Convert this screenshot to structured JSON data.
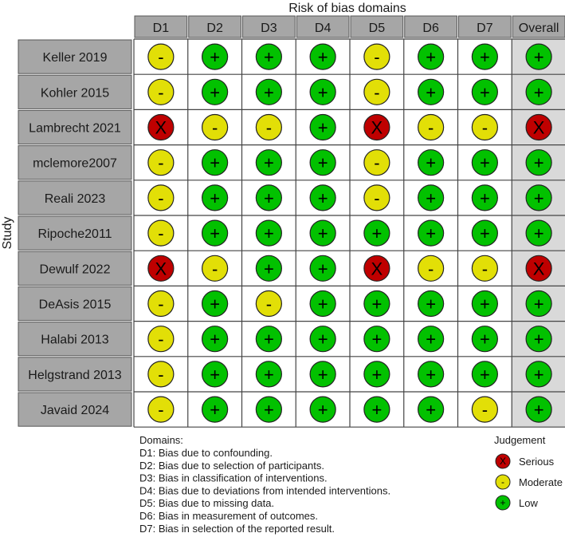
{
  "chart_data": {
    "type": "table",
    "title": "Risk of bias domains",
    "ylabel": "Study",
    "domains": [
      "D1",
      "D2",
      "D3",
      "D4",
      "D5",
      "D6",
      "D7",
      "Overall"
    ],
    "studies": [
      "Keller 2019",
      "Kohler 2015",
      "Lambrecht 2021",
      "mclemore2007",
      "Reali 2023",
      "Ripoche2011",
      "Dewulf 2022",
      "DeAsis 2015",
      "Halabi 2013",
      "Helgstrand 2013",
      "Javaid 2024"
    ],
    "judgements": [
      [
        "Moderate",
        "Low",
        "Low",
        "Low",
        "Moderate",
        "Low",
        "Low",
        "Low"
      ],
      [
        "Moderate",
        "Low",
        "Low",
        "Low",
        "Moderate",
        "Low",
        "Low",
        "Low"
      ],
      [
        "Serious",
        "Moderate",
        "Moderate",
        "Low",
        "Serious",
        "Moderate",
        "Moderate",
        "Serious"
      ],
      [
        "Moderate",
        "Low",
        "Low",
        "Low",
        "Moderate",
        "Low",
        "Low",
        "Low"
      ],
      [
        "Moderate",
        "Low",
        "Low",
        "Low",
        "Moderate",
        "Low",
        "Low",
        "Low"
      ],
      [
        "Moderate",
        "Low",
        "Low",
        "Low",
        "Low",
        "Low",
        "Low",
        "Low"
      ],
      [
        "Serious",
        "Moderate",
        "Low",
        "Low",
        "Serious",
        "Moderate",
        "Moderate",
        "Serious"
      ],
      [
        "Moderate",
        "Low",
        "Moderate",
        "Low",
        "Low",
        "Low",
        "Low",
        "Low"
      ],
      [
        "Moderate",
        "Low",
        "Low",
        "Low",
        "Low",
        "Low",
        "Low",
        "Low"
      ],
      [
        "Moderate",
        "Low",
        "Low",
        "Low",
        "Low",
        "Low",
        "Low",
        "Low"
      ],
      [
        "Moderate",
        "Low",
        "Low",
        "Low",
        "Low",
        "Low",
        "Moderate",
        "Low"
      ]
    ],
    "levels": {
      "Serious": {
        "symbol": "X",
        "color": "#bf0000"
      },
      "Moderate": {
        "symbol": "-",
        "color": "#e2df07"
      },
      "Low": {
        "symbol": "+",
        "color": "#02c100"
      }
    },
    "domains_note": {
      "heading": "Domains:",
      "lines": [
        "D1: Bias due to confounding.",
        "D2: Bias due to selection of participants.",
        "D3: Bias in classification of interventions.",
        "D4: Bias due to deviations from intended interventions.",
        "D5: Bias due to missing data.",
        "D6: Bias in measurement of outcomes.",
        "D7: Bias in selection of the reported result."
      ]
    },
    "legend": {
      "title": "Judgement",
      "entries": [
        {
          "label": "Serious",
          "level": "Serious"
        },
        {
          "label": "Moderate",
          "level": "Moderate"
        },
        {
          "label": "Low",
          "level": "Low"
        }
      ]
    }
  }
}
